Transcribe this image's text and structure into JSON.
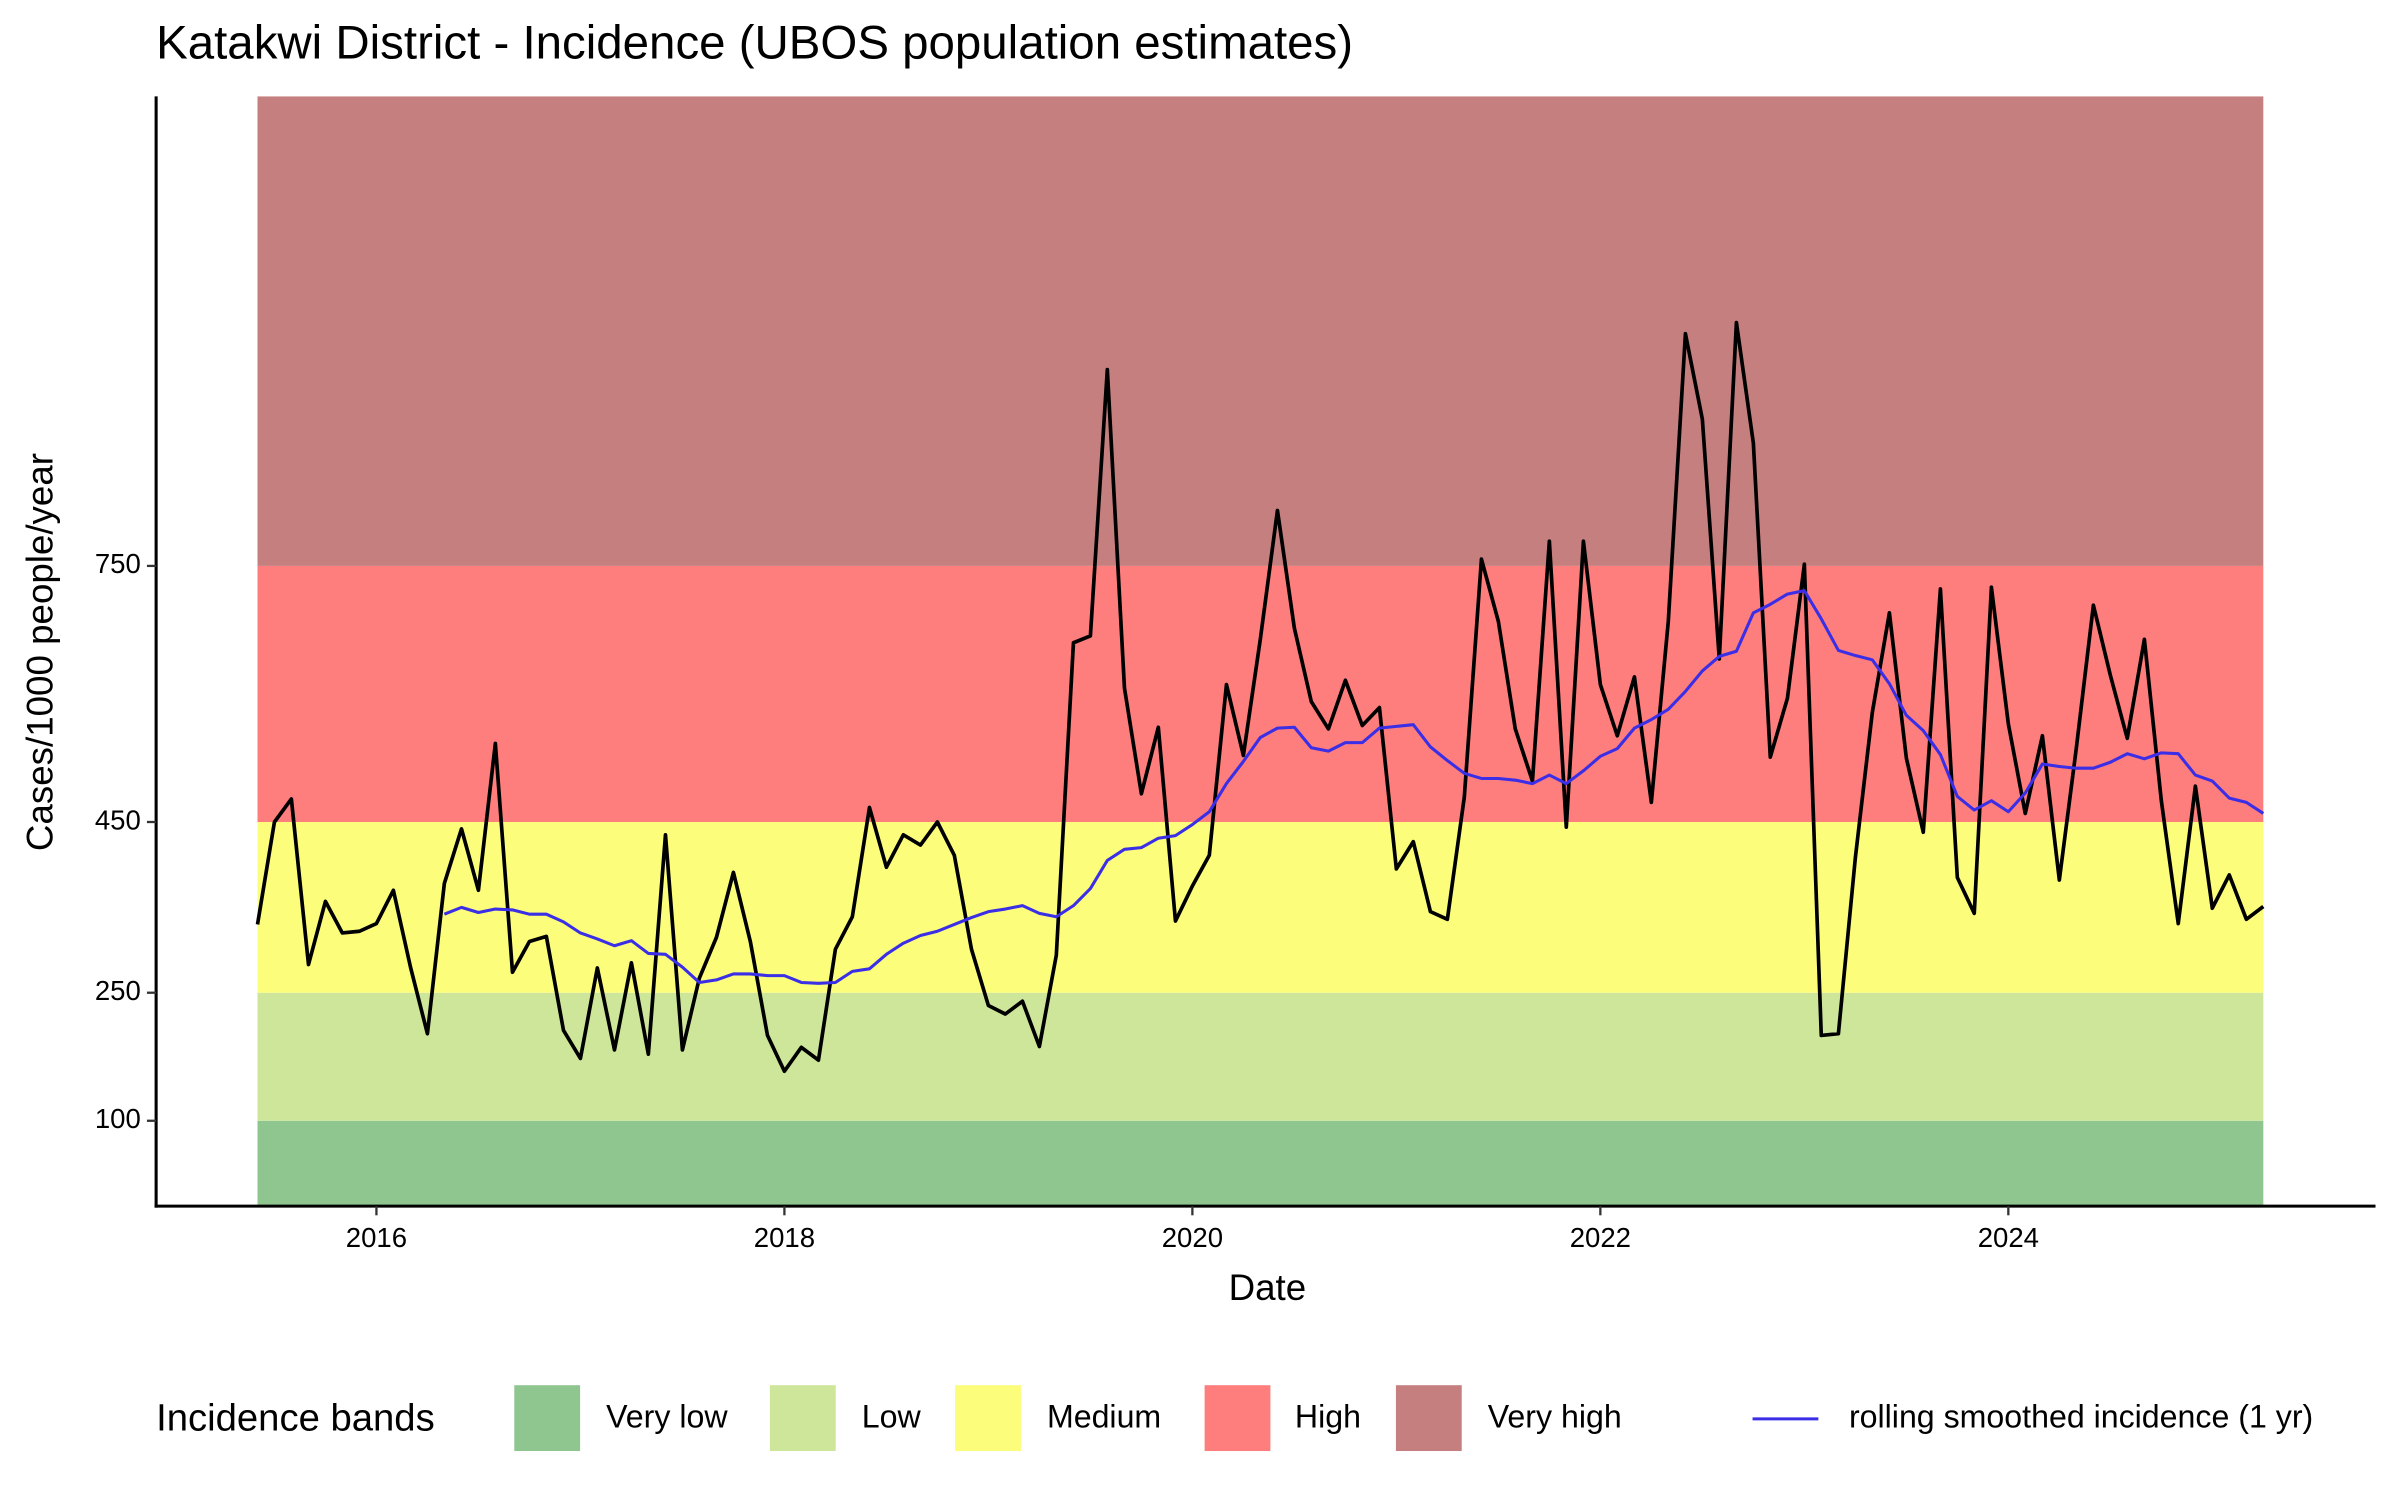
{
  "chart_data": {
    "type": "line",
    "title": "Katakwi District - Incidence (UBOS population estimates)",
    "x_label": "Date",
    "y_label": "Cases/1000 people/year",
    "xlim": [
      2014.92,
      2025.8
    ],
    "xticks": [
      2016,
      2018,
      2020,
      2022,
      2024
    ],
    "ylim": [
      0,
      1300
    ],
    "yticks": [
      100,
      250,
      450,
      750
    ],
    "legend_title": "Incidence bands",
    "legend_position": "bottom",
    "bands": [
      {
        "name": "Very low",
        "color": "#8fc58f",
        "from": 0,
        "to": 100
      },
      {
        "name": "Low",
        "color": "#cde69a",
        "from": 100,
        "to": 250
      },
      {
        "name": "Medium",
        "color": "#fdfd7c",
        "from": 250,
        "to": 450
      },
      {
        "name": "High",
        "color": "#fe7d7d",
        "from": 450,
        "to": 750
      },
      {
        "name": "Very high",
        "color": "#c57f7e",
        "from": 750,
        "to": 1300
      }
    ],
    "x": [
      2015.417,
      2015.5,
      2015.583,
      2015.667,
      2015.75,
      2015.833,
      2015.917,
      2016.0,
      2016.083,
      2016.167,
      2016.25,
      2016.333,
      2016.417,
      2016.5,
      2016.583,
      2016.667,
      2016.75,
      2016.833,
      2016.917,
      2017.0,
      2017.083,
      2017.167,
      2017.25,
      2017.333,
      2017.417,
      2017.5,
      2017.583,
      2017.667,
      2017.75,
      2017.833,
      2017.917,
      2018.0,
      2018.083,
      2018.167,
      2018.25,
      2018.333,
      2018.417,
      2018.5,
      2018.583,
      2018.667,
      2018.75,
      2018.833,
      2018.917,
      2019.0,
      2019.083,
      2019.167,
      2019.25,
      2019.333,
      2019.417,
      2019.5,
      2019.583,
      2019.667,
      2019.75,
      2019.833,
      2019.917,
      2020.0,
      2020.083,
      2020.167,
      2020.25,
      2020.333,
      2020.417,
      2020.5,
      2020.583,
      2020.667,
      2020.75,
      2020.833,
      2020.917,
      2021.0,
      2021.083,
      2021.167,
      2021.25,
      2021.333,
      2021.417,
      2021.5,
      2021.583,
      2021.667,
      2021.75,
      2021.833,
      2021.917,
      2022.0,
      2022.083,
      2022.167,
      2022.25,
      2022.333,
      2022.417,
      2022.5,
      2022.583,
      2022.667,
      2022.75,
      2022.833,
      2022.917,
      2023.0,
      2023.083,
      2023.167,
      2023.25,
      2023.333,
      2023.417,
      2023.5,
      2023.583,
      2023.667,
      2023.75,
      2023.833,
      2023.917,
      2024.0,
      2024.083,
      2024.167,
      2024.25,
      2024.333,
      2024.417,
      2024.5,
      2024.583,
      2024.667,
      2024.75,
      2024.833,
      2024.917,
      2025.0,
      2025.083,
      2025.167,
      2025.25
    ],
    "series": [
      {
        "color": "#000000",
        "values": [
          330,
          450,
          477,
          283,
          357,
          320,
          322,
          331,
          370,
          280,
          202,
          378,
          442,
          370,
          542,
          274,
          310,
          316,
          206,
          173,
          279,
          183,
          285,
          178,
          435,
          183,
          267,
          315,
          391,
          310,
          200,
          158,
          186,
          171,
          301,
          339,
          467,
          397,
          435,
          423,
          450,
          411,
          301,
          235,
          225,
          240,
          187,
          294,
          660,
          668,
          980,
          607,
          483,
          561,
          334,
          375,
          411,
          611,
          528,
          664,
          815,
          677,
          591,
          559,
          616,
          563,
          584,
          395,
          427,
          345,
          336,
          479,
          758,
          685,
          559,
          498,
          779,
          444,
          779,
          611,
          551,
          620,
          473,
          685,
          1022,
          922,
          641,
          1035,
          894,
          526,
          595,
          752,
          200,
          202,
          408,
          578,
          695,
          525,
          438,
          723,
          385,
          343,
          725,
          565,
          460,
          551,
          382,
          536,
          704,
          622,
          548,
          664,
          475,
          331,
          492,
          349,
          388,
          336,
          351
        ]
      },
      {
        "name": "rolling smoothed incidence (1 yr)",
        "color": "#3a2ee6",
        "values": [
          null,
          null,
          null,
          null,
          null,
          null,
          null,
          null,
          null,
          null,
          null,
          342,
          350,
          344,
          348,
          347,
          342,
          342,
          333,
          320,
          313,
          305,
          311,
          296,
          295,
          280,
          262,
          265,
          272,
          272,
          270,
          270,
          262,
          261,
          262,
          275,
          278,
          295,
          308,
          317,
          322,
          330,
          338,
          345,
          348,
          352,
          343,
          339,
          352,
          372,
          405,
          418,
          420,
          431,
          434,
          447,
          462,
          495,
          521,
          549,
          560,
          561,
          537,
          533,
          543,
          543,
          560,
          562,
          564,
          538,
          522,
          507,
          501,
          501,
          499,
          495,
          505,
          495,
          510,
          527,
          536,
          560,
          570,
          582,
          603,
          627,
          644,
          650,
          695,
          705,
          717,
          721,
          688,
          651,
          645,
          640,
          612,
          575,
          557,
          529,
          480,
          464,
          475,
          462,
          484,
          518,
          515,
          513,
          513,
          520,
          530,
          524,
          531,
          530,
          505,
          498,
          478,
          473,
          460
        ]
      }
    ]
  }
}
